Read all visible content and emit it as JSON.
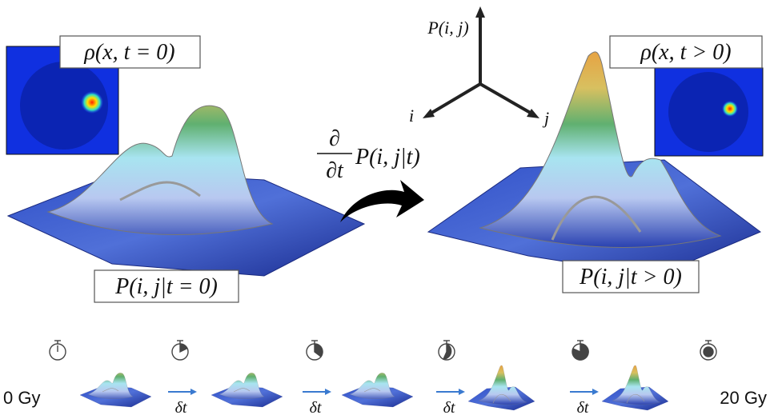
{
  "insets": [
    {
      "label": "ρ(x, t = 0)"
    },
    {
      "label": "ρ(x, t > 0)"
    }
  ],
  "axes": {
    "z": "P(i, j)",
    "x": "i",
    "y": "j"
  },
  "operator": {
    "numerator": "∂",
    "denominator": "∂t",
    "expression": "P(i, j|t)"
  },
  "surfaces": [
    {
      "label": "P(i, j|t = 0)"
    },
    {
      "label": "P(i, j|t > 0)"
    }
  ],
  "timeline": {
    "start": "0 Gy",
    "end": "20 Gy",
    "steps": [
      "δt",
      "δt",
      "δt",
      "δt"
    ]
  }
}
